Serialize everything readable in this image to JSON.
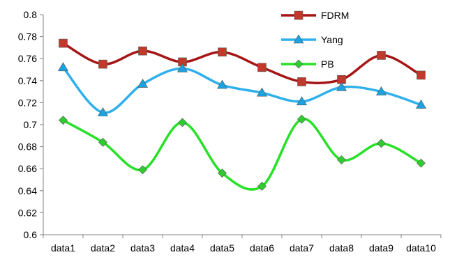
{
  "chart_data": {
    "type": "line",
    "categories": [
      "data1",
      "data2",
      "data3",
      "data4",
      "data5",
      "data6",
      "data7",
      "data8",
      "data9",
      "data10"
    ],
    "ylim": [
      0.6,
      0.8
    ],
    "yticks": [
      "0.6",
      "0.62",
      "0.64",
      "0.66",
      "0.68",
      "0.7",
      "0.72",
      "0.74",
      "0.76",
      "0.78",
      "0.8"
    ],
    "grid": false,
    "legend_position": "top-right",
    "series": [
      {
        "name": "FDRM",
        "color": "#c0392b",
        "stroke": "#a51515",
        "marker": "square",
        "values": [
          0.774,
          0.755,
          0.767,
          0.757,
          0.766,
          0.752,
          0.739,
          0.741,
          0.763,
          0.745
        ]
      },
      {
        "name": "Yang",
        "color": "#1aa3e0",
        "stroke": "#2fb0ec",
        "marker": "triangle",
        "values": [
          0.752,
          0.711,
          0.737,
          0.751,
          0.736,
          0.729,
          0.721,
          0.734,
          0.73,
          0.718
        ]
      },
      {
        "name": "PB",
        "color": "#2ecc2e",
        "stroke": "#28e028",
        "marker": "diamond",
        "values": [
          0.704,
          0.684,
          0.659,
          0.702,
          0.656,
          0.644,
          0.705,
          0.668,
          0.683,
          0.665
        ]
      }
    ]
  }
}
